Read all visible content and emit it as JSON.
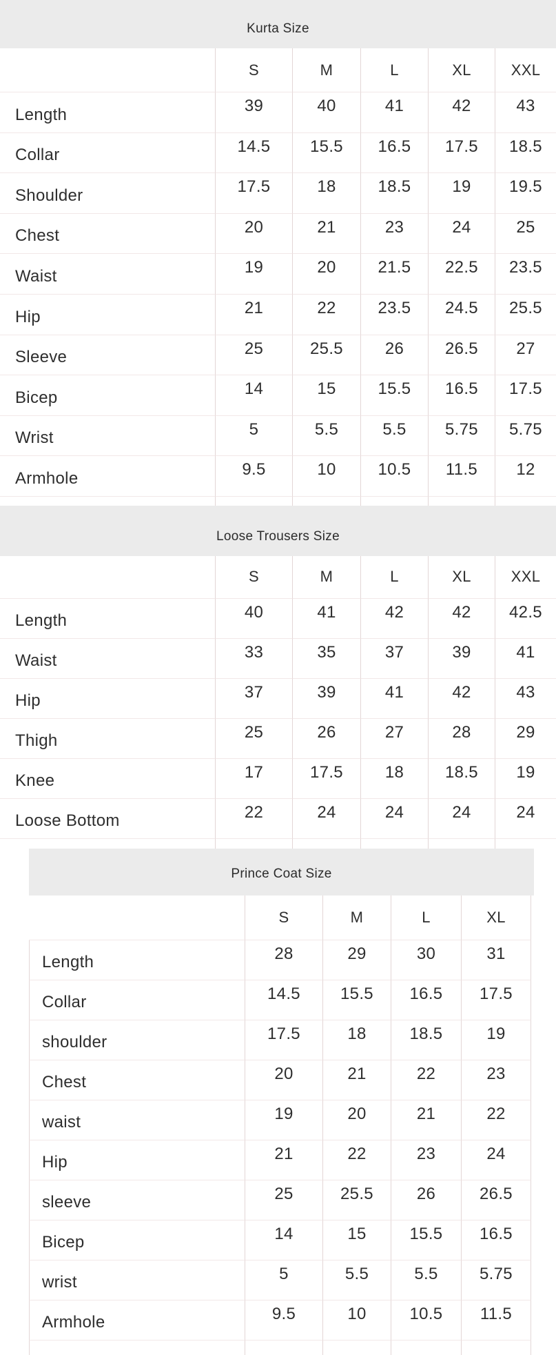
{
  "colors": {
    "band_background": "#ebebeb",
    "vertical_border": "#e3d6d6",
    "horizontal_border": "#f2e8e8",
    "text": "#2e2e2e"
  },
  "tables": [
    {
      "title": "Kurta Size",
      "columns": [
        "S",
        "M",
        "L",
        "XL",
        "XXL"
      ],
      "rows": [
        {
          "label": "Length",
          "values": [
            "39",
            "40",
            "41",
            "42",
            "43"
          ]
        },
        {
          "label": "Collar",
          "values": [
            "14.5",
            "15.5",
            "16.5",
            "17.5",
            "18.5"
          ]
        },
        {
          "label": "Shoulder",
          "values": [
            "17.5",
            "18",
            "18.5",
            "19",
            "19.5"
          ]
        },
        {
          "label": "Chest",
          "values": [
            "20",
            "21",
            "23",
            "24",
            "25"
          ]
        },
        {
          "label": "Waist",
          "values": [
            "19",
            "20",
            "21.5",
            "22.5",
            "23.5"
          ]
        },
        {
          "label": "Hip",
          "values": [
            "21",
            "22",
            "23.5",
            "24.5",
            "25.5"
          ]
        },
        {
          "label": "Sleeve",
          "values": [
            "25",
            "25.5",
            "26",
            "26.5",
            "27"
          ]
        },
        {
          "label": "Bicep",
          "values": [
            "14",
            "15",
            "15.5",
            "16.5",
            "17.5"
          ]
        },
        {
          "label": "Wrist",
          "values": [
            "5",
            "5.5",
            "5.5",
            "5.75",
            "5.75"
          ]
        },
        {
          "label": "Armhole",
          "values": [
            "9.5",
            "10",
            "10.5",
            "11.5",
            "12"
          ]
        }
      ]
    },
    {
      "title": "Loose Trousers Size",
      "columns": [
        "S",
        "M",
        "L",
        "XL",
        "XXL"
      ],
      "rows": [
        {
          "label": "Length",
          "values": [
            "40",
            "41",
            "42",
            "42",
            "42.5"
          ]
        },
        {
          "label": "Waist",
          "values": [
            "33",
            "35",
            "37",
            "39",
            "41"
          ]
        },
        {
          "label": "Hip",
          "values": [
            "37",
            "39",
            "41",
            "42",
            "43"
          ]
        },
        {
          "label": "Thigh",
          "values": [
            "25",
            "26",
            "27",
            "28",
            "29"
          ]
        },
        {
          "label": "Knee",
          "values": [
            "17",
            "17.5",
            "18",
            "18.5",
            "19"
          ]
        },
        {
          "label": "Loose Bottom",
          "values": [
            "22",
            "24",
            "24",
            "24",
            "24"
          ]
        }
      ]
    },
    {
      "title": "Prince Coat Size",
      "columns": [
        "S",
        "M",
        "L",
        "XL"
      ],
      "rows": [
        {
          "label": "Length",
          "values": [
            "28",
            "29",
            "30",
            "31"
          ]
        },
        {
          "label": "Collar",
          "values": [
            "14.5",
            "15.5",
            "16.5",
            "17.5"
          ]
        },
        {
          "label": "shoulder",
          "values": [
            "17.5",
            "18",
            "18.5",
            "19"
          ]
        },
        {
          "label": "Chest",
          "values": [
            "20",
            "21",
            "22",
            "23"
          ]
        },
        {
          "label": "waist",
          "values": [
            "19",
            "20",
            "21",
            "22"
          ]
        },
        {
          "label": "Hip",
          "values": [
            "21",
            "22",
            "23",
            "24"
          ]
        },
        {
          "label": "sleeve",
          "values": [
            "25",
            "25.5",
            "26",
            "26.5"
          ]
        },
        {
          "label": "Bicep",
          "values": [
            "14",
            "15",
            "15.5",
            "16.5"
          ]
        },
        {
          "label": "wrist",
          "values": [
            "5",
            "5.5",
            "5.5",
            "5.75"
          ]
        },
        {
          "label": "Armhole",
          "values": [
            "9.5",
            "10",
            "10.5",
            "11.5"
          ]
        }
      ]
    }
  ]
}
